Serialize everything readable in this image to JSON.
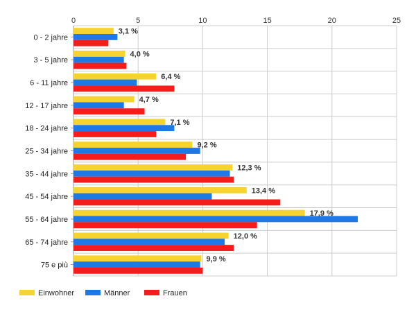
{
  "chart_data": {
    "type": "bar",
    "orientation": "horizontal",
    "categories": [
      "0 - 2 jahre",
      "3 - 5 jahre",
      "6 - 11 jahre",
      "12 - 17 jahre",
      "18 - 24 jahre",
      "25 - 34 jahre",
      "35 - 44 jahre",
      "45 - 54 jahre",
      "55 - 64 jahre",
      "65 - 74 jahre",
      "75 e più"
    ],
    "series": [
      {
        "name": "Einwohner",
        "color": "#f7d330",
        "values": [
          3.1,
          4.0,
          6.4,
          4.7,
          7.1,
          9.2,
          12.3,
          13.4,
          17.9,
          12.0,
          9.9
        ]
      },
      {
        "name": "Männer",
        "color": "#1e78e6",
        "values": [
          3.4,
          3.9,
          4.9,
          3.9,
          7.8,
          9.8,
          12.1,
          10.7,
          22.0,
          11.7,
          9.8
        ]
      },
      {
        "name": "Frauen",
        "color": "#f51c1c",
        "values": [
          2.7,
          4.1,
          7.8,
          5.5,
          6.4,
          8.7,
          12.4,
          16.0,
          14.2,
          12.4,
          10.0
        ]
      }
    ],
    "data_labels": [
      "3,1 %",
      "4,0 %",
      "6,4 %",
      "4,7 %",
      "7,1 %",
      "9,2 %",
      "12,3 %",
      "13,4 %",
      "17,9 %",
      "12,0 %",
      "9,9 %"
    ],
    "xlim": [
      0,
      25
    ],
    "xticks": [
      0,
      5,
      10,
      15,
      20,
      25
    ],
    "x_axis_position": "top",
    "grid": true,
    "legend_position": "bottom-left",
    "title": "",
    "xlabel": "",
    "ylabel": ""
  }
}
